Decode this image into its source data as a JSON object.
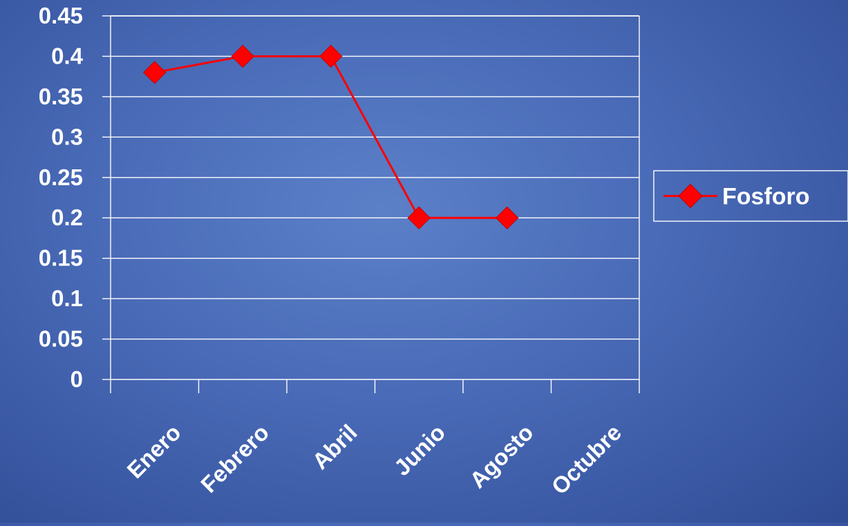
{
  "chart_data": {
    "type": "line",
    "categories": [
      "Enero",
      "Febrero",
      "Abril",
      "Junio",
      "Agosto",
      "Octubre"
    ],
    "series": [
      {
        "name": "Fosforo",
        "values": [
          0.38,
          0.4,
          0.4,
          0.2,
          0.2,
          null
        ],
        "color": "#ff0000",
        "marker": "diamond"
      }
    ],
    "ylim": [
      0,
      0.45
    ],
    "yticks": [
      "0",
      "0.05",
      "0.1",
      "0.15",
      "0.2",
      "0.25",
      "0.3",
      "0.35",
      "0.4",
      "0.45"
    ],
    "grid": true,
    "legend": "right",
    "title": "",
    "xlabel": "",
    "ylabel": ""
  }
}
